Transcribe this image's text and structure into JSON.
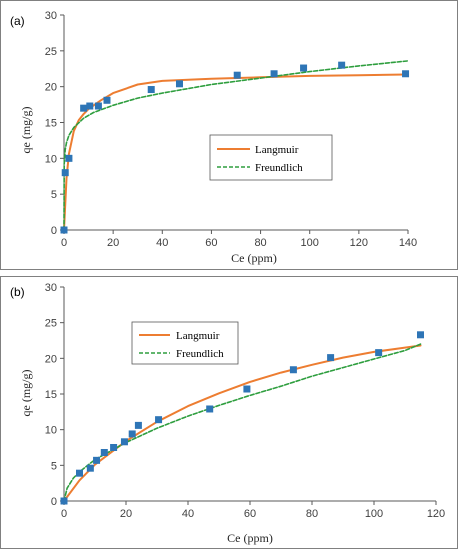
{
  "chart_data": [
    {
      "type": "scatter",
      "panel_label": "(a)",
      "xlabel": "Ce (ppm)",
      "ylabel": "qe (mg/g)",
      "xlim": [
        0,
        140
      ],
      "ylim": [
        0,
        30
      ],
      "xticks": [
        0,
        20,
        40,
        60,
        80,
        100,
        120,
        140
      ],
      "yticks": [
        0,
        5,
        10,
        15,
        20,
        25,
        30
      ],
      "grid": false,
      "legend_position": "center-right",
      "points": {
        "x": [
          0,
          0.5,
          2,
          8,
          10.5,
          14,
          17.5,
          35.5,
          47,
          70.5,
          85.5,
          97.5,
          113,
          139
        ],
        "y": [
          0,
          8,
          10,
          17,
          17.3,
          17.3,
          18.1,
          19.6,
          20.4,
          21.6,
          21.8,
          22.6,
          23,
          21.8
        ]
      },
      "series": [
        {
          "name": "Langmuir",
          "style": "solid",
          "color": "#ED7D31",
          "x": [
            0,
            1,
            2,
            4,
            6,
            8,
            10,
            15,
            20,
            30,
            40,
            60,
            80,
            100,
            120,
            139
          ],
          "y": [
            0,
            7.2,
            10.6,
            13.8,
            15.3,
            16.2,
            16.9,
            18.1,
            19.1,
            20.3,
            20.8,
            21.1,
            21.3,
            21.5,
            21.6,
            21.7
          ]
        },
        {
          "name": "Freundlich",
          "style": "dashed",
          "color": "#2E9E3E",
          "x": [
            0,
            0.1,
            0.5,
            1,
            2,
            4,
            8,
            12,
            20,
            30,
            40,
            60,
            80,
            100,
            120,
            140
          ],
          "y": [
            0,
            9.2,
            11.2,
            12.2,
            13.2,
            14.3,
            15.6,
            16.4,
            17.4,
            18.4,
            19.1,
            20.3,
            21.2,
            22.1,
            22.9,
            23.6
          ]
        }
      ]
    },
    {
      "type": "scatter",
      "panel_label": "(b)",
      "xlabel": "Ce (ppm)",
      "ylabel": "qe (mg/g)",
      "xlim": [
        0,
        120
      ],
      "ylim": [
        0,
        30
      ],
      "xticks": [
        0,
        20,
        40,
        60,
        80,
        100,
        120
      ],
      "yticks": [
        0,
        5,
        10,
        15,
        20,
        25,
        30
      ],
      "grid": false,
      "legend_position": "top-left",
      "points": {
        "x": [
          0,
          5,
          8.5,
          10.5,
          13,
          16,
          19.5,
          22,
          24,
          30.5,
          47,
          59,
          74,
          86,
          101.5,
          115
        ],
        "y": [
          0,
          3.9,
          4.6,
          5.7,
          6.8,
          7.5,
          8.3,
          9.4,
          10.6,
          11.4,
          12.9,
          15.7,
          18.4,
          20.1,
          20.8,
          23.3
        ]
      },
      "series": [
        {
          "name": "Langmuir",
          "style": "solid",
          "color": "#ED7D31",
          "x": [
            0,
            5,
            10,
            20,
            30,
            40,
            50,
            60,
            70,
            80,
            90,
            100,
            110,
            115
          ],
          "y": [
            0,
            2.9,
            5.1,
            8.4,
            11.1,
            13.3,
            15.1,
            16.7,
            18,
            19.1,
            20.1,
            20.9,
            21.5,
            21.8
          ]
        },
        {
          "name": "Freundlich",
          "style": "dashed",
          "color": "#2E9E3E",
          "x": [
            0,
            1,
            3,
            5,
            10,
            20,
            30,
            40,
            50,
            60,
            70,
            80,
            90,
            100,
            110,
            115
          ],
          "y": [
            0,
            1.8,
            3.2,
            4.1,
            5.8,
            8.2,
            10.2,
            11.9,
            13.4,
            14.8,
            16.1,
            17.5,
            18.7,
            19.9,
            21.1,
            22
          ]
        }
      ]
    }
  ],
  "colors": {
    "marker": "#2E75B6",
    "axis": "#595959",
    "frame": "#808080"
  }
}
